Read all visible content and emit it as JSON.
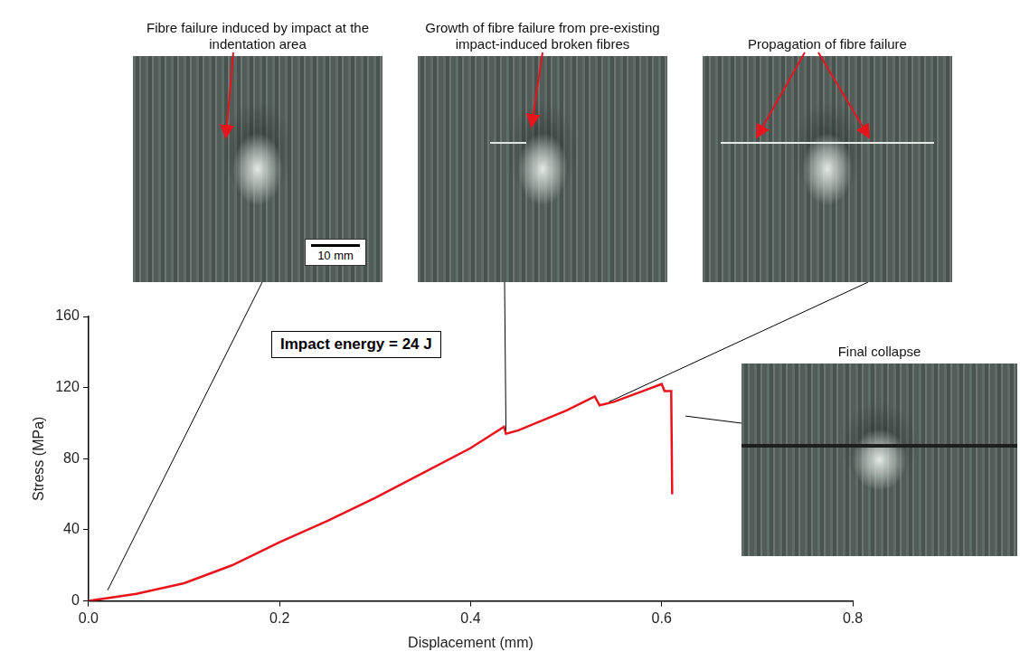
{
  "chart_data": {
    "type": "line",
    "x": [
      0,
      0.05,
      0.1,
      0.15,
      0.2,
      0.25,
      0.3,
      0.35,
      0.4,
      0.435,
      0.437,
      0.45,
      0.5,
      0.53,
      0.535,
      0.55,
      0.58,
      0.6,
      0.603,
      0.61,
      0.611
    ],
    "values": [
      0,
      4,
      10,
      20,
      33,
      45,
      58,
      72,
      86,
      98,
      94,
      96,
      107,
      115,
      110,
      112,
      118,
      122,
      118,
      118,
      60
    ],
    "color": "#e8141c",
    "xlabel": "Displacement (mm)",
    "ylabel": "Stress (MPa)",
    "xlim": [
      0,
      0.8
    ],
    "xticks": [
      {
        "value": 0,
        "label": "0.0"
      },
      0.2,
      0.4,
      0.6,
      0.8
    ],
    "ylim": [
      0,
      160
    ],
    "yticks": [
      0,
      40,
      80,
      120,
      160
    ],
    "grid": false,
    "annotations": [
      {
        "text": "Impact energy = 24 J"
      }
    ],
    "photos": [
      {
        "caption": "Fibre failure induced by impact at the indentation area",
        "x": 0.02,
        "y": 6,
        "scale_bar": "10 mm"
      },
      {
        "caption": "Growth of fibre failure from pre-existing impact-induced broken fibres",
        "x": 0.437,
        "y": 96
      },
      {
        "caption": "Propagation of fibre failure",
        "x": 0.545,
        "y": 112
      },
      {
        "caption": "Final collapse",
        "x": 0.625,
        "y": 104
      }
    ]
  }
}
